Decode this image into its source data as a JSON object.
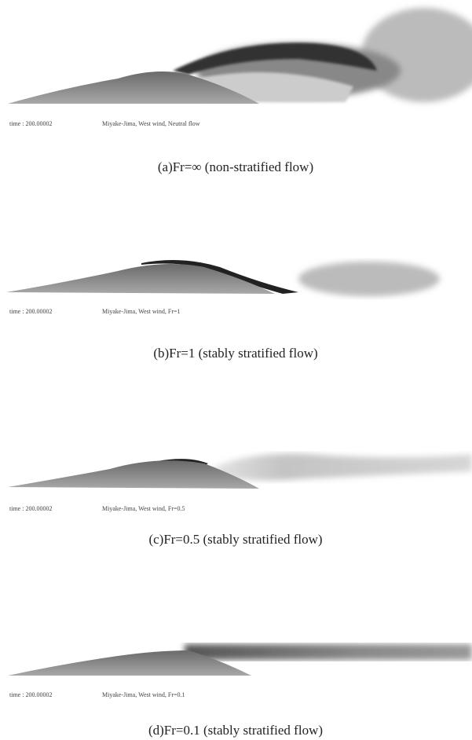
{
  "panels": [
    {
      "time": "time : 200.00002",
      "label": "Miyake-Jima, West wind, Neutral flow",
      "caption": "(a)Fr=∞ (non-stratified flow)"
    },
    {
      "time": "time : 200.00002",
      "label": "Miyake-Jima, West wind, Fr=1",
      "caption": "(b)Fr=1 (stably stratified flow)"
    },
    {
      "time": "time : 200.00002",
      "label": "Miyake-Jima, West wind, Fr=0.5",
      "caption": "(c)Fr=0.5 (stably stratified flow)"
    },
    {
      "time": "time : 200.00002",
      "label": "Miyake-Jima, West wind, Fr=0.1",
      "caption": "(d)Fr=0.1 (stably stratified flow)"
    }
  ]
}
